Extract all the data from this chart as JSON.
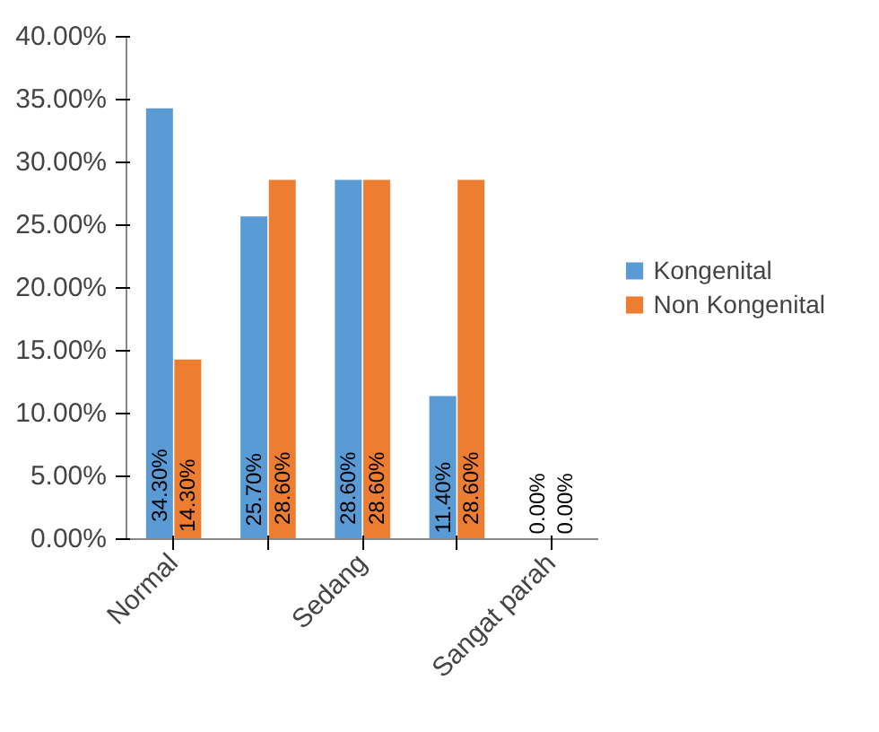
{
  "chart_data": {
    "type": "bar",
    "categories": [
      "Normal",
      null,
      "Sedang",
      null,
      "Sangat parah"
    ],
    "series": [
      {
        "name": "Kongenital",
        "color": "#5b9bd5",
        "values": [
          34.3,
          25.7,
          28.6,
          11.4,
          0
        ],
        "value_labels": [
          "34.30%",
          "25.70%",
          "28.60%",
          "11.40%",
          "0.00%"
        ]
      },
      {
        "name": "Non Kongenital",
        "color": "#ed7d31",
        "values": [
          14.3,
          28.6,
          28.6,
          28.6,
          0
        ],
        "value_labels": [
          "14.30%",
          "28.60%",
          "28.60%",
          "28.60%",
          "0.00%"
        ]
      }
    ],
    "ylim": [
      0,
      40
    ],
    "yticks": [
      {
        "value": 0,
        "label": "0.00%"
      },
      {
        "value": 5,
        "label": "5.00%"
      },
      {
        "value": 10,
        "label": "10.00%"
      },
      {
        "value": 15,
        "label": "15.00%"
      },
      {
        "value": 20,
        "label": "20.00%"
      },
      {
        "value": 25,
        "label": "25.00%"
      },
      {
        "value": 30,
        "label": "30.00%"
      },
      {
        "value": 35,
        "label": "35.00%"
      },
      {
        "value": 40,
        "label": "40.00%"
      }
    ],
    "grid": false,
    "legend": "right"
  }
}
